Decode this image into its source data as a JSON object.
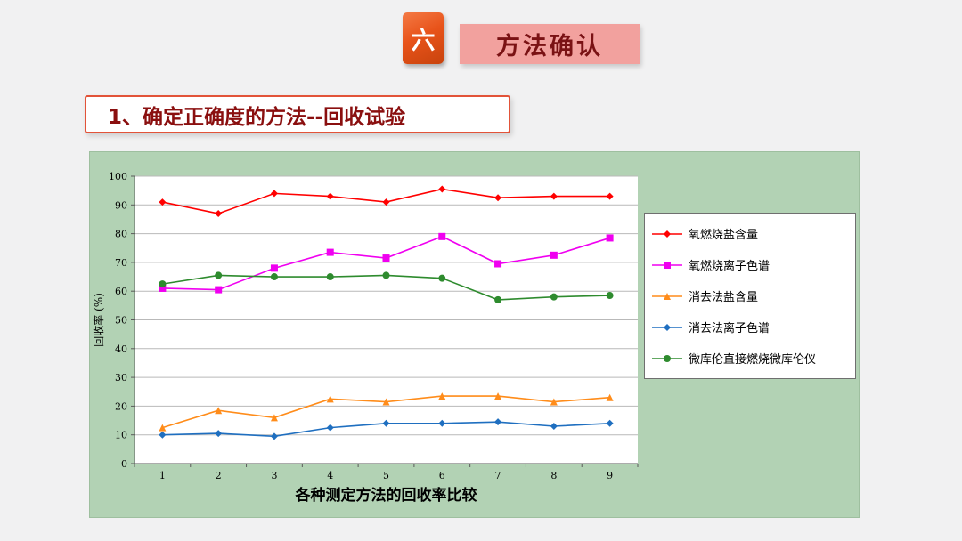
{
  "slide": {
    "badge": "六",
    "title": "方法确认",
    "subtitle": "1、确定正确度的方法--回收试验"
  },
  "chart_data": {
    "type": "line",
    "x": [
      1,
      2,
      3,
      4,
      5,
      6,
      7,
      8,
      9
    ],
    "series": [
      {
        "name": "氧燃烧盐含量",
        "color": "#ff0000",
        "marker": "diamond",
        "values": [
          91,
          87,
          94,
          93,
          91,
          95.5,
          92.5,
          93,
          93
        ]
      },
      {
        "name": "氧燃烧离子色谱",
        "color": "#f000f0",
        "marker": "square",
        "values": [
          61,
          60.5,
          68,
          73.5,
          71.5,
          79,
          69.5,
          72.5,
          78.5
        ]
      },
      {
        "name": "消去法盐含量",
        "color": "#ff8c1a",
        "marker": "triangle",
        "values": [
          12.5,
          18.5,
          16,
          22.5,
          21.5,
          23.5,
          23.5,
          21.5,
          23
        ]
      },
      {
        "name": "消去法离子色谱",
        "color": "#1f6fc0",
        "marker": "diamond",
        "values": [
          10,
          10.5,
          9.5,
          12.5,
          14,
          14,
          14.5,
          13,
          14
        ]
      },
      {
        "name": "微库伦直接燃烧微库伦仪",
        "color": "#2e8b2e",
        "marker": "circle",
        "values": [
          62.5,
          65.5,
          65,
          65,
          65.5,
          64.5,
          57,
          58,
          58.5
        ]
      }
    ],
    "title": "",
    "xlabel": "各种测定方法的回收率比较",
    "ylabel": "回收率 (%)",
    "ylim": [
      0,
      100
    ],
    "yticks": [
      0,
      10,
      20,
      30,
      40,
      50,
      60,
      70,
      80,
      90,
      100
    ],
    "grid": true,
    "legend_position": "right",
    "colors": {
      "plot_bg": "#ffffff",
      "panel_bg": "#b2d2b4",
      "gridline": "#b9b9b9",
      "axis": "#5a5a5a"
    }
  }
}
